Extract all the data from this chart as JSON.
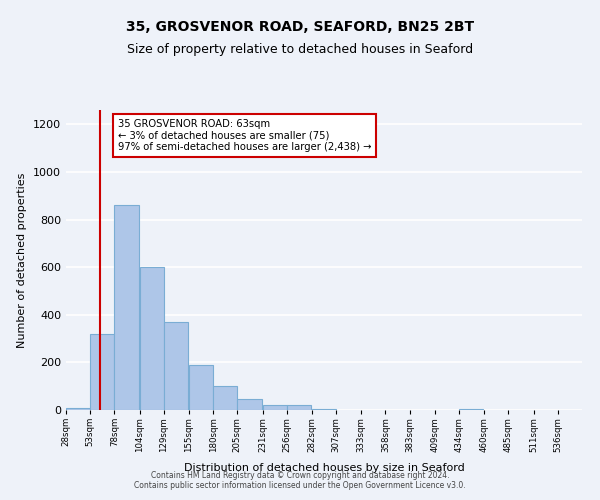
{
  "title_line1": "35, GROSVENOR ROAD, SEAFORD, BN25 2BT",
  "title_line2": "Size of property relative to detached houses in Seaford",
  "xlabel": "Distribution of detached houses by size in Seaford",
  "ylabel": "Number of detached properties",
  "bin_labels": [
    "28sqm",
    "53sqm",
    "78sqm",
    "104sqm",
    "129sqm",
    "155sqm",
    "180sqm",
    "205sqm",
    "231sqm",
    "256sqm",
    "282sqm",
    "307sqm",
    "333sqm",
    "358sqm",
    "383sqm",
    "409sqm",
    "434sqm",
    "460sqm",
    "485sqm",
    "511sqm",
    "536sqm"
  ],
  "bin_edges": [
    28,
    53,
    78,
    104,
    129,
    155,
    180,
    205,
    231,
    256,
    282,
    307,
    333,
    358,
    383,
    409,
    434,
    460,
    485,
    511,
    536
  ],
  "bar_heights": [
    10,
    320,
    860,
    600,
    370,
    190,
    100,
    47,
    20,
    20,
    5,
    0,
    0,
    0,
    0,
    0,
    5,
    0,
    0,
    0
  ],
  "bar_color": "#aec6e8",
  "bar_edgecolor": "#7aadd4",
  "property_size": 63,
  "red_line_color": "#cc0000",
  "annotation_line1": "35 GROSVENOR ROAD: 63sqm",
  "annotation_line2": "← 3% of detached houses are smaller (75)",
  "annotation_line3": "97% of semi-detached houses are larger (2,438) →",
  "annotation_box_color": "#ffffff",
  "annotation_box_edgecolor": "#cc0000",
  "ylim": [
    0,
    1260
  ],
  "footer_line1": "Contains HM Land Registry data © Crown copyright and database right 2024.",
  "footer_line2": "Contains public sector information licensed under the Open Government Licence v3.0.",
  "background_color": "#eef2f9",
  "grid_color": "#ffffff",
  "title_fontsize": 10,
  "subtitle_fontsize": 9
}
